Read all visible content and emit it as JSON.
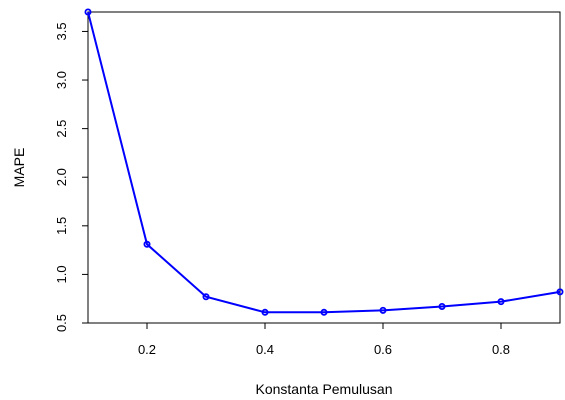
{
  "chart_data": {
    "type": "line",
    "xlabel": "Konstanta Pemulusan",
    "ylabel": "MAPE",
    "xlim": [
      0.1,
      0.9
    ],
    "ylim": [
      0.5,
      3.7
    ],
    "x_ticks": [
      0.2,
      0.4,
      0.6,
      0.8
    ],
    "x_tick_labels": [
      "0.2",
      "0.4",
      "0.6",
      "0.8"
    ],
    "y_ticks": [
      0.5,
      1.0,
      1.5,
      2.0,
      2.5,
      3.0,
      3.5
    ],
    "y_tick_labels": [
      "0.5",
      "1.0",
      "1.5",
      "2.0",
      "2.5",
      "3.0",
      "3.5"
    ],
    "grid": false,
    "legend": "none",
    "series": [
      {
        "color": "#0000ff",
        "x": [
          0.1,
          0.2,
          0.3,
          0.4,
          0.5,
          0.6,
          0.7,
          0.8,
          0.9
        ],
        "y": [
          3.7,
          1.31,
          0.77,
          0.61,
          0.61,
          0.63,
          0.67,
          0.72,
          0.82
        ]
      }
    ]
  }
}
